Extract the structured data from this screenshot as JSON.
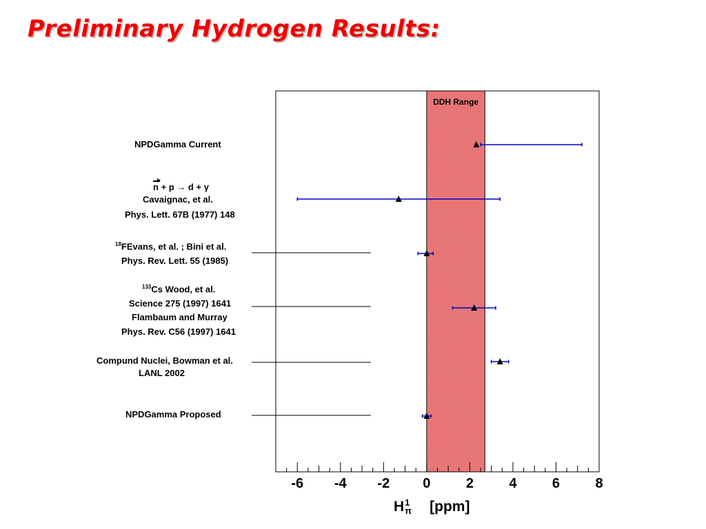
{
  "slide": {
    "title": "Preliminary Hydrogen Results:"
  },
  "labels": {
    "npd_current": "NPDGamma Current",
    "cav_reaction": {
      "n": "n",
      "rest": " + p → d + γ"
    },
    "cav_authors": "Cavaignac, et al.",
    "cav_ref": "Phys. Lett. 67B (1977) 148",
    "f18_sup": "18",
    "f18_text": "FEvans, et al. ; Bini et al.",
    "f18_ref": "Phys. Rev. Lett. 55 (1985)",
    "cs_sup": "133",
    "cs_text": "Cs Wood, et al.",
    "cs_ref": "Science 275 (1997) 1641",
    "flam_authors": "Flambaum and Murray",
    "flam_ref": "Phys. Rev. C56 (1997) 1641",
    "compound": "Compund  Nuclei, Bowman et al.",
    "lanl": "LANL 2002",
    "npd_proposed": "NPDGamma Proposed"
  },
  "axis": {
    "x_symbol": "H",
    "x_sup": "1",
    "x_sub": "π",
    "x_unit": "[ppm]"
  },
  "chart_data": {
    "type": "scatter",
    "title": "",
    "xlabel": "Hπ1 [ppm]",
    "xlim": [
      -7,
      8
    ],
    "xticks": [
      -6,
      -4,
      -2,
      0,
      2,
      4,
      6,
      8
    ],
    "band": {
      "label": "DDH Range",
      "from": 0,
      "to": 2.7,
      "color": "#f08080"
    },
    "marker_color": "#000000",
    "errorbar_color": "#0000cc",
    "points": [
      {
        "name": "NPDGamma Current",
        "x": 2.3,
        "xerr_low": 2.5,
        "xerr_high": 7.2
      },
      {
        "name": "Cavaignac, et al.",
        "x": -1.3,
        "xerr_low": -6.0,
        "xerr_high": 3.4
      },
      {
        "name": "18F Evans, et al. ; Bini et al.",
        "x": 0.0,
        "xerr_low": -0.4,
        "xerr_high": 0.3
      },
      {
        "name": "133Cs Wood, et al. / Flambaum and Murray",
        "x": 2.2,
        "xerr_low": 1.2,
        "xerr_high": 3.2
      },
      {
        "name": "Compund Nuclei, Bowman et al. LANL 2002",
        "x": 3.4,
        "xerr_low": 3.0,
        "xerr_high": 3.8
      },
      {
        "name": "NPDGamma Proposed",
        "x": 0.0,
        "xerr_low": -0.2,
        "xerr_high": 0.2
      }
    ]
  }
}
